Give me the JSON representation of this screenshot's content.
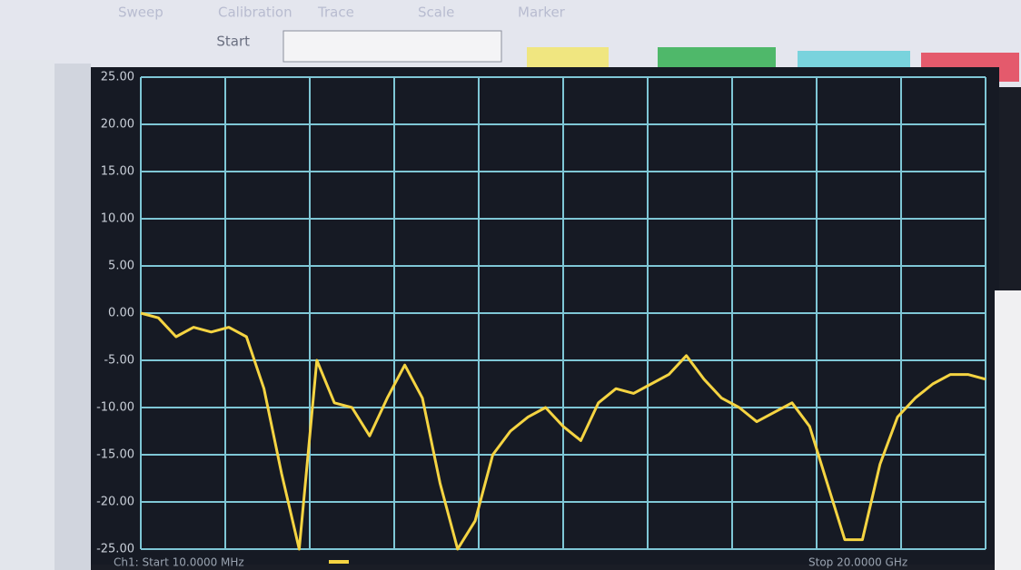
{
  "menu": [
    "Sweep",
    "Calibration",
    "Trace",
    "Scale",
    "Marker"
  ],
  "toolbar": {
    "start_label": "Start"
  },
  "status": {
    "start": "Ch1: Start  10.0000 MHz",
    "stop": "Stop 20.0000 GHz"
  },
  "chart_data": {
    "type": "line",
    "color": "#f5d442",
    "values": [
      0,
      -0.5,
      -2.5,
      -1.5,
      -2,
      -1.5,
      -2.5,
      -8,
      -17,
      -25,
      -5,
      -9.5,
      -10,
      -13,
      -9,
      -5.5,
      -9,
      -18,
      -25,
      -22,
      -15,
      -12.5,
      -11,
      -10,
      -12,
      -13.5,
      -9.5,
      -8,
      -8.5,
      -7.5,
      -6.5,
      -4.5,
      -7,
      -9,
      -10,
      -11.5,
      -10.5,
      -9.5,
      -12,
      -18,
      -24,
      -24,
      -16,
      -11,
      -9,
      -7.5,
      -6.5,
      -6.5,
      -7
    ],
    "ylim": [
      -25,
      25
    ],
    "yticks": [
      {
        "value": -25,
        "label": "-25.00"
      },
      {
        "value": -20,
        "label": "-20.00"
      },
      {
        "value": -15,
        "label": "-15.00"
      },
      {
        "value": -10,
        "label": "-10.00"
      },
      {
        "value": -5,
        "label": "-5.00"
      },
      {
        "value": 0,
        "label": "0.00"
      },
      {
        "value": 5,
        "label": "5.00"
      },
      {
        "value": 10,
        "label": "10.00"
      },
      {
        "value": 15,
        "label": "15.00"
      },
      {
        "value": 20,
        "label": "20.00"
      },
      {
        "value": 25,
        "label": "25.00"
      }
    ],
    "grid": true
  }
}
